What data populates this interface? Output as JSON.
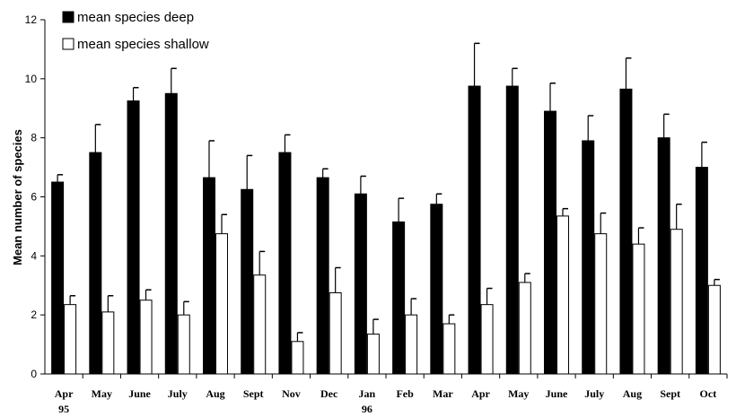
{
  "chart_data": {
    "type": "bar",
    "title": "",
    "xlabel": "",
    "ylabel": "Mean number of species",
    "ylim": [
      0,
      12
    ],
    "yticks": [
      0,
      2,
      4,
      6,
      8,
      10,
      12
    ],
    "categories": [
      "Apr",
      "May",
      "June",
      "July",
      "Aug",
      "Sept",
      "Nov",
      "Dec",
      "Jan",
      "Feb",
      "Mar",
      "Apr",
      "May",
      "June",
      "July",
      "Aug",
      "Sept",
      "Oct"
    ],
    "year_labels": [
      {
        "category_index": 0,
        "text": "95"
      },
      {
        "category_index": 8,
        "text": "96"
      }
    ],
    "series": [
      {
        "name": "mean species deep",
        "color": "#000000",
        "values": [
          6.5,
          7.5,
          9.25,
          9.5,
          6.65,
          6.25,
          7.5,
          6.65,
          6.1,
          5.15,
          5.75,
          9.75,
          9.75,
          8.9,
          7.9,
          9.65,
          8.0,
          7.0
        ],
        "errors": [
          0.25,
          0.95,
          0.45,
          0.85,
          1.25,
          1.15,
          0.6,
          0.3,
          0.6,
          0.8,
          0.35,
          1.45,
          0.6,
          0.95,
          0.85,
          1.05,
          0.8,
          0.85
        ]
      },
      {
        "name": "mean species shallow",
        "color": "#ffffff",
        "values": [
          2.35,
          2.1,
          2.5,
          2.0,
          4.75,
          3.35,
          1.1,
          2.75,
          1.35,
          2.0,
          1.7,
          2.35,
          3.1,
          5.35,
          4.75,
          4.4,
          4.9,
          3.0
        ],
        "errors": [
          0.3,
          0.55,
          0.35,
          0.45,
          0.65,
          0.8,
          0.3,
          0.85,
          0.5,
          0.55,
          0.3,
          0.55,
          0.3,
          0.25,
          0.7,
          0.55,
          0.85,
          0.2
        ]
      }
    ],
    "legend_position": "top-left",
    "grid": false
  }
}
